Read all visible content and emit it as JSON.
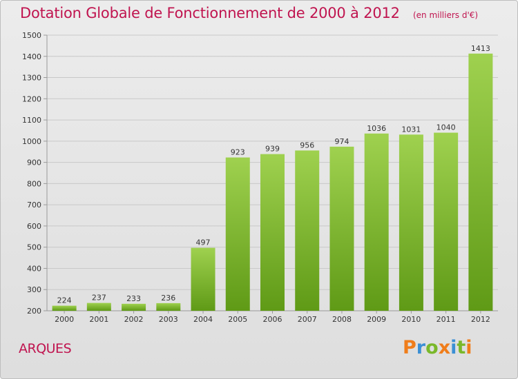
{
  "header": {
    "title": "Dotation Globale de Fonctionnement de 2000 à 2012",
    "subtitle": "(en milliers d'€)"
  },
  "footer": {
    "place": "ARQUES",
    "logo": "Proxiti",
    "logo_letters": [
      {
        "char": "P",
        "color": "#f07d1a"
      },
      {
        "char": "r",
        "color": "#3b8fd4"
      },
      {
        "char": "o",
        "color": "#7ab82a"
      },
      {
        "char": "x",
        "color": "#f07d1a"
      },
      {
        "char": "i",
        "color": "#3b8fd4"
      },
      {
        "char": "t",
        "color": "#7ab82a"
      },
      {
        "char": "i",
        "color": "#f07d1a"
      }
    ]
  },
  "colors": {
    "title": "#c0144f",
    "bar_light": "#9fd14f",
    "bar_dark": "#5f9a16",
    "grid": "#c8c8c8"
  },
  "chart_data": {
    "type": "bar",
    "title": "Dotation Globale de Fonctionnement de 2000 à 2012",
    "subtitle": "(en milliers d'€)",
    "categories": [
      "2000",
      "2001",
      "2002",
      "2003",
      "2004",
      "2005",
      "2006",
      "2007",
      "2008",
      "2009",
      "2010",
      "2011",
      "2012"
    ],
    "values": [
      224,
      237,
      233,
      236,
      497,
      923,
      939,
      956,
      974,
      1036,
      1031,
      1040,
      1413
    ],
    "ylim": [
      200,
      1500
    ],
    "yticks": [
      200,
      300,
      400,
      500,
      600,
      700,
      800,
      900,
      1000,
      1100,
      1200,
      1300,
      1400,
      1500
    ],
    "grid": true,
    "data_labels": true
  }
}
